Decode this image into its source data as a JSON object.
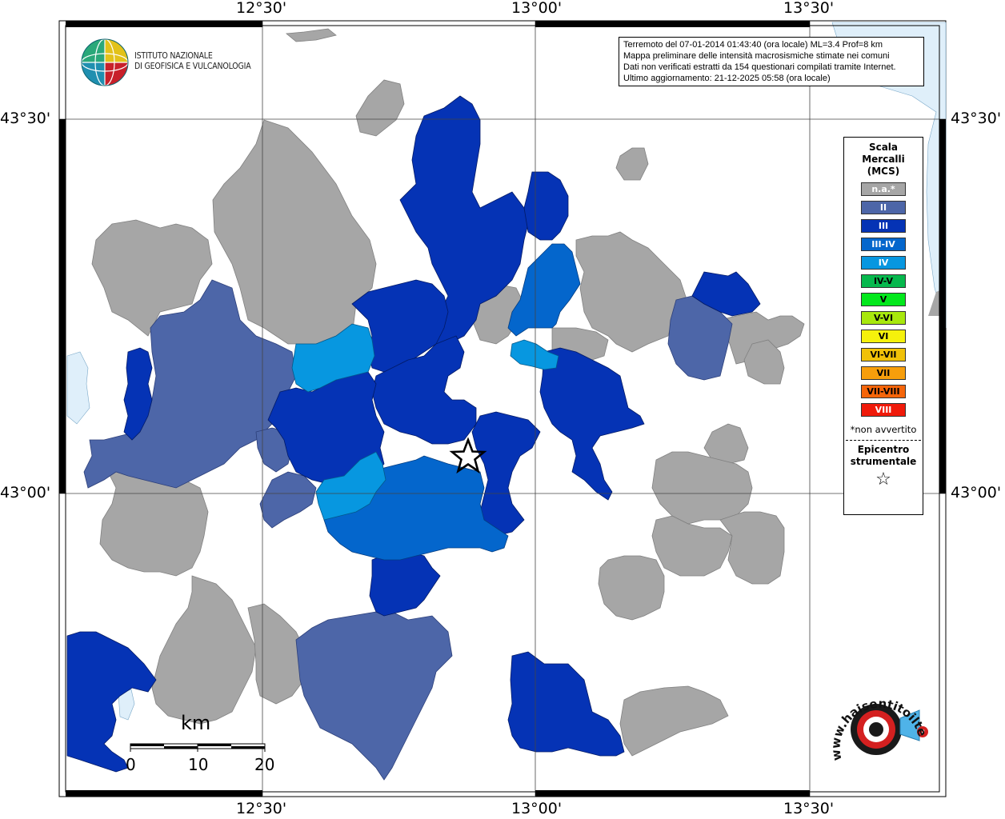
{
  "info": {
    "line1": "Terremoto del 07-01-2014 01:43:40 (ora locale) ML=3.4 Prof=8 km",
    "line2": "Mappa preliminare delle intensità macrosismiche stimate nei comuni",
    "line3": "Dati non verificati estratti da 154 questionari compilati tramite Internet.",
    "line4": "Ultimo aggiornamento: 21-12-2025 05:58 (ora locale)"
  },
  "logo": {
    "line1": "ISTITUTO NAZIONALE",
    "line2": "DI GEOFISICA E VULCANOLOGIA"
  },
  "axes": {
    "top": [
      "12°30'",
      "13°00'",
      "13°30'"
    ],
    "bottom": [
      "12°30'",
      "13°00'",
      "13°30'"
    ],
    "left": [
      "43°30'",
      "43°00'"
    ],
    "right": [
      "43°30'",
      "43°00'"
    ]
  },
  "legend": {
    "title1": "Scala",
    "title2": "Mercalli",
    "title3": "(MCS)",
    "items": [
      {
        "label": "n.a.*",
        "color": "#a6a6a6"
      },
      {
        "label": "II",
        "color": "#4d66a8"
      },
      {
        "label": "III",
        "color": "#0533b5"
      },
      {
        "label": "III-IV",
        "color": "#0466cc"
      },
      {
        "label": "IV",
        "color": "#0797e0"
      },
      {
        "label": "IV-V",
        "color": "#06b84d"
      },
      {
        "label": "V",
        "color": "#03e81c"
      },
      {
        "label": "V-VI",
        "color": "#a8e80d"
      },
      {
        "label": "VI",
        "color": "#f5f10c"
      },
      {
        "label": "VI-VII",
        "color": "#f0c108"
      },
      {
        "label": "VII",
        "color": "#f79e0c"
      },
      {
        "label": "VII-VIII",
        "color": "#f5650a"
      },
      {
        "label": "VIII",
        "color": "#f01a0a"
      }
    ],
    "note": "*non avvertito",
    "epicentro1": "Epicentro",
    "epicentro2": "strumentale",
    "star": "☆"
  },
  "scalebar": {
    "unit": "km",
    "labels": [
      "0",
      "10",
      "20"
    ]
  },
  "hsi_logo": {
    "text1": "www.haisentitoilterremoto.it",
    "icon": "hai-sentito-il-terremoto-logo"
  },
  "colors": {
    "na": "#a6a6a6",
    "II": "#4d66a8",
    "III": "#0533b5",
    "III-IV": "#0466cc",
    "IV": "#0797e0",
    "water": "#dfeffa"
  }
}
